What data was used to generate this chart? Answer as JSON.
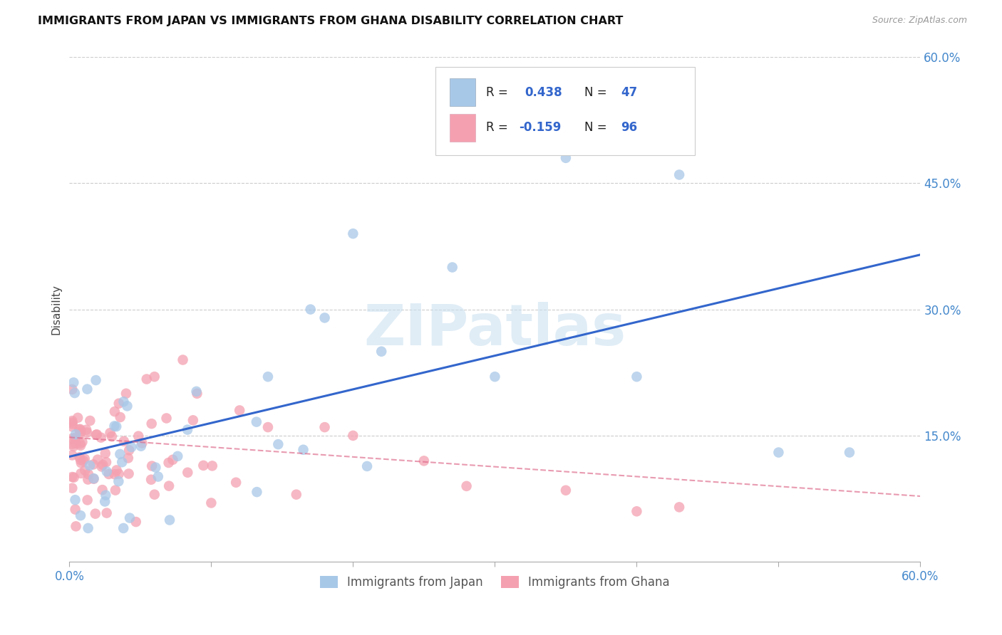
{
  "title": "IMMIGRANTS FROM JAPAN VS IMMIGRANTS FROM GHANA DISABILITY CORRELATION CHART",
  "source": "Source: ZipAtlas.com",
  "ylabel": "Disability",
  "watermark_zip": "ZIP",
  "watermark_atlas": "atlas",
  "japan_R": 0.438,
  "japan_N": 47,
  "ghana_R": -0.159,
  "ghana_N": 96,
  "xlim": [
    0.0,
    0.6
  ],
  "ylim": [
    0.0,
    0.6
  ],
  "grid_color": "#cccccc",
  "japan_color": "#a8c8e8",
  "ghana_color": "#f4a0b0",
  "japan_line_color": "#3366cc",
  "ghana_line_color": "#dd6688",
  "background_color": "#ffffff",
  "japan_line_x0": 0.0,
  "japan_line_y0": 0.125,
  "japan_line_x1": 0.6,
  "japan_line_y1": 0.365,
  "ghana_line_x0": 0.0,
  "ghana_line_y0": 0.148,
  "ghana_line_x1": 0.6,
  "ghana_line_y1": 0.078
}
